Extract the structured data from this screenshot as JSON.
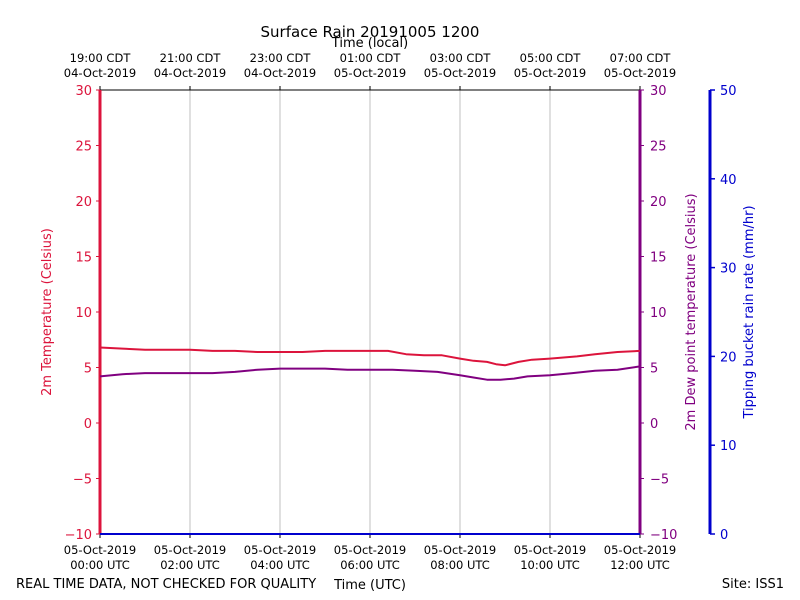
{
  "chart_data": {
    "type": "line",
    "title": "Surface Rain 20191005 1200",
    "top_axis_label": "Time (local)",
    "xlabel": "Time (UTC)",
    "footer_left": "REAL TIME DATA, NOT CHECKED FOR QUALITY",
    "footer_right": "Site: ISS1",
    "x_range_hours": [
      0,
      12
    ],
    "bottom_ticks": [
      {
        "hour": 0,
        "line1": "05-Oct-2019",
        "line2": "00:00 UTC"
      },
      {
        "hour": 2,
        "line1": "05-Oct-2019",
        "line2": "02:00 UTC"
      },
      {
        "hour": 4,
        "line1": "05-Oct-2019",
        "line2": "04:00 UTC"
      },
      {
        "hour": 6,
        "line1": "05-Oct-2019",
        "line2": "06:00 UTC"
      },
      {
        "hour": 8,
        "line1": "05-Oct-2019",
        "line2": "08:00 UTC"
      },
      {
        "hour": 10,
        "line1": "05-Oct-2019",
        "line2": "10:00 UTC"
      },
      {
        "hour": 12,
        "line1": "05-Oct-2019",
        "line2": "12:00 UTC"
      }
    ],
    "top_ticks": [
      {
        "hour": 0,
        "line1": "19:00 CDT",
        "line2": "04-Oct-2019"
      },
      {
        "hour": 2,
        "line1": "21:00 CDT",
        "line2": "04-Oct-2019"
      },
      {
        "hour": 4,
        "line1": "23:00 CDT",
        "line2": "04-Oct-2019"
      },
      {
        "hour": 6,
        "line1": "01:00 CDT",
        "line2": "05-Oct-2019"
      },
      {
        "hour": 8,
        "line1": "03:00 CDT",
        "line2": "05-Oct-2019"
      },
      {
        "hour": 10,
        "line1": "05:00 CDT",
        "line2": "05-Oct-2019"
      },
      {
        "hour": 12,
        "line1": "07:00 CDT",
        "line2": "05-Oct-2019"
      }
    ],
    "left_axis": {
      "label": "2m Temperature (Celsius)",
      "color": "#dc143c",
      "ylim": [
        -10,
        30
      ],
      "ticks": [
        -10,
        -5,
        0,
        5,
        10,
        15,
        20,
        25,
        30
      ],
      "tick_labels": [
        "−10",
        "−5",
        "0",
        "5",
        "10",
        "15",
        "20",
        "25",
        "30"
      ]
    },
    "right_axis": {
      "label": "2m Dew point temperature (Celsius)",
      "color": "#800080",
      "ylim": [
        -10,
        30
      ],
      "ticks": [
        -10,
        -5,
        0,
        5,
        10,
        15,
        20,
        25,
        30
      ],
      "tick_labels": [
        "−10",
        "−5",
        "0",
        "5",
        "10",
        "15",
        "20",
        "25",
        "30"
      ]
    },
    "rain_axis": {
      "label": "Tipping bucket rain rate (mm/hr)",
      "color": "#0000cd",
      "ylim": [
        0,
        50
      ],
      "ticks": [
        0,
        10,
        20,
        30,
        40,
        50
      ],
      "tick_labels": [
        "0",
        "10",
        "20",
        "30",
        "40",
        "50"
      ]
    },
    "series": [
      {
        "name": "2m Temperature",
        "color": "#dc143c",
        "x": [
          0,
          0.5,
          1,
          1.5,
          2,
          2.5,
          3,
          3.5,
          4,
          4.5,
          5,
          5.5,
          6,
          6.4,
          6.8,
          7.2,
          7.6,
          8,
          8.3,
          8.6,
          8.8,
          9,
          9.3,
          9.6,
          10,
          10.3,
          10.6,
          11,
          11.5,
          12
        ],
        "y": [
          6.8,
          6.7,
          6.6,
          6.6,
          6.6,
          6.5,
          6.5,
          6.4,
          6.4,
          6.4,
          6.5,
          6.5,
          6.5,
          6.5,
          6.2,
          6.1,
          6.1,
          5.8,
          5.6,
          5.5,
          5.3,
          5.2,
          5.5,
          5.7,
          5.8,
          5.9,
          6.0,
          6.2,
          6.4,
          6.5
        ]
      },
      {
        "name": "2m Dew point temperature",
        "color": "#800080",
        "x": [
          0,
          0.5,
          1,
          1.5,
          2,
          2.5,
          3,
          3.5,
          4,
          4.5,
          5,
          5.5,
          6,
          6.5,
          7,
          7.5,
          8,
          8.3,
          8.6,
          8.9,
          9.2,
          9.5,
          10,
          10.5,
          11,
          11.5,
          12
        ],
        "y": [
          4.2,
          4.4,
          4.5,
          4.5,
          4.5,
          4.5,
          4.6,
          4.8,
          4.9,
          4.9,
          4.9,
          4.8,
          4.8,
          4.8,
          4.7,
          4.6,
          4.3,
          4.1,
          3.9,
          3.9,
          4.0,
          4.2,
          4.3,
          4.5,
          4.7,
          4.8,
          5.1
        ]
      },
      {
        "name": "Tipping bucket rain rate",
        "color": "#0000cd",
        "x": [
          0,
          12
        ],
        "y": [
          0,
          0
        ]
      }
    ]
  }
}
